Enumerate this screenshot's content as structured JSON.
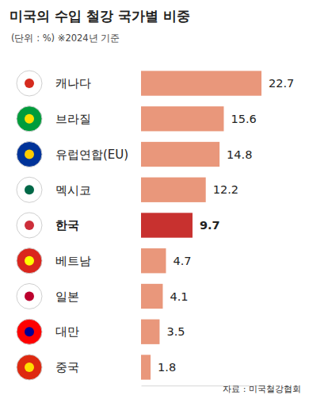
{
  "chart_data": {
    "type": "bar",
    "orientation": "horizontal",
    "title": "미국의 수입 철강 국가별 비중",
    "subtitle": "(단위 : %) ※2024년 기준",
    "source": "자료 : 미국철강협회",
    "categories": [
      "캐나다",
      "브라질",
      "유럽연합(EU)",
      "멕시코",
      "한국",
      "베트남",
      "일본",
      "대만",
      "중국"
    ],
    "values": [
      22.7,
      15.6,
      14.8,
      12.2,
      9.7,
      4.7,
      4.1,
      3.5,
      1.8
    ],
    "colors": [
      "#e9977b",
      "#e9977b",
      "#e9977b",
      "#e9977b",
      "#c8312f",
      "#e9977b",
      "#e9977b",
      "#e9977b",
      "#e9977b"
    ],
    "xlim": [
      0,
      22.7
    ],
    "data_labels": true,
    "tick_labels": false,
    "grid": false
  }
}
